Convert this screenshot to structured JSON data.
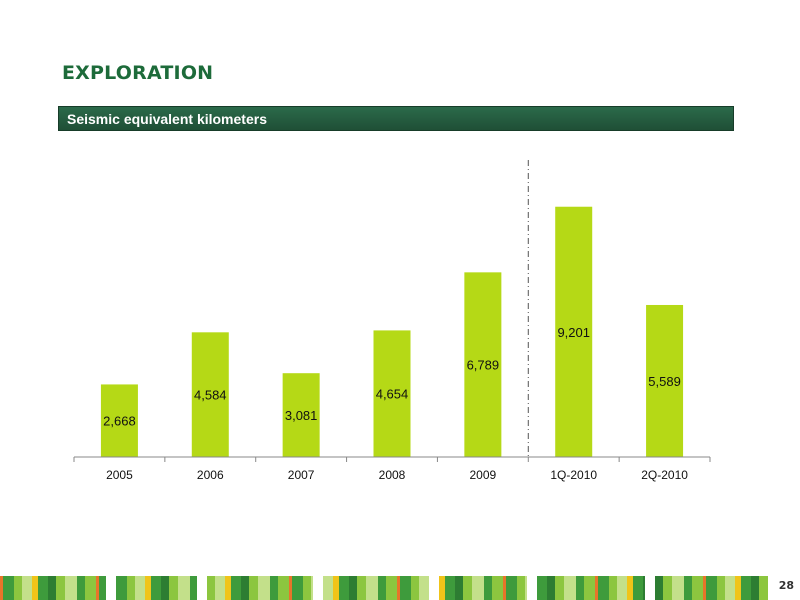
{
  "slide": {
    "title": "EXPLORATION",
    "banner": "Seismic equivalent kilometers",
    "page_number": "28"
  },
  "colors": {
    "title": "#1d6b3a",
    "banner": "#245c40",
    "bar": "#b5d916",
    "footer": [
      "#e8742a",
      "#3e9b3c",
      "#8cc63f",
      "#c3e08a",
      "#f0c419",
      "#2d7d32"
    ]
  },
  "chart_data": {
    "type": "bar",
    "categories": [
      "2005",
      "2006",
      "2007",
      "2008",
      "2009",
      "1Q-2010",
      "2Q-2010"
    ],
    "values": [
      2668,
      4584,
      3081,
      4654,
      6789,
      9201,
      5589
    ],
    "value_labels": [
      "2,668",
      "4,584",
      "3,081",
      "4,654",
      "6,789",
      "9,201",
      "5,589"
    ],
    "ylim": [
      0,
      12500
    ],
    "divider_after_category": "2009",
    "legend": "none",
    "grid": false
  }
}
